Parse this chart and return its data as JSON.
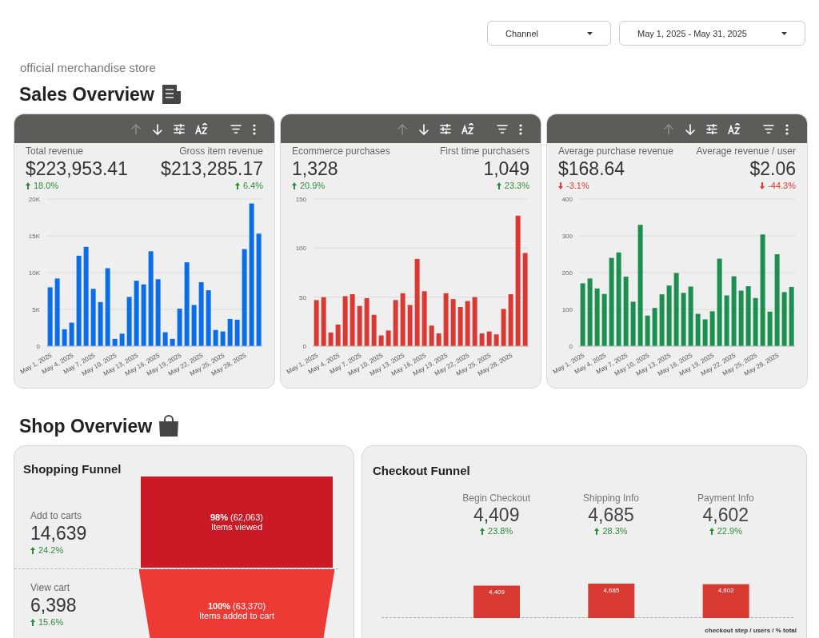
{
  "chart_data": [
    {
      "type": "other",
      "title": "Sales Overview",
      "annotations": [
        "official merchandise store",
        "Channel",
        "May 1, 2025 - May 31, 2025"
      ]
    },
    {
      "type": "bar",
      "categories": [
        "May 1, 2025",
        null,
        null,
        "May 4, 2025",
        null,
        null,
        "May 7, 2025",
        null,
        null,
        "May 10, 2025",
        null,
        null,
        "May 13, 2025",
        null,
        null,
        "May 16, 2025",
        null,
        null,
        "May 19, 2025",
        null,
        null,
        "May 22, 2025",
        null,
        null,
        "May 25, 2025",
        null,
        null,
        "May 28, 2025",
        null,
        null
      ],
      "values": [
        8000,
        9200,
        2300,
        3200,
        12300,
        13500,
        7800,
        6000,
        10600,
        1000,
        1700,
        6700,
        8900,
        8400,
        12900,
        9100,
        1900,
        1000,
        5100,
        11400,
        5600,
        8700,
        7600,
        2200,
        2000,
        3700,
        3600,
        13200,
        19400,
        15300
      ],
      "color": "#0b6de8",
      "ylim": [
        0,
        20000
      ],
      "yticks": [
        0,
        {
          "value": 5000,
          "label": "5K"
        },
        {
          "value": 10000,
          "label": "10K"
        },
        {
          "value": 15000,
          "label": "15K"
        },
        {
          "value": 20000,
          "label": "20K"
        }
      ],
      "grid": "y",
      "annotations": [
        "Total revenue",
        "$223,953.41",
        "18.0%",
        "Gross item revenue",
        "$213,285.17",
        "6.4%"
      ]
    },
    {
      "type": "bar",
      "categories": [
        "May 1, 2025",
        null,
        null,
        "May 4, 2025",
        null,
        null,
        "May 7, 2025",
        null,
        null,
        "May 10, 2025",
        null,
        null,
        "May 13, 2025",
        null,
        null,
        "May 16, 2025",
        null,
        null,
        "May 19, 2025",
        null,
        null,
        "May 22, 2025",
        null,
        null,
        "May 25, 2025",
        null,
        null,
        "May 28, 2025",
        null,
        null
      ],
      "values": [
        47,
        50,
        14,
        22,
        51,
        53,
        41,
        49,
        32,
        11,
        16,
        47,
        54,
        42,
        89,
        56,
        21,
        13,
        54,
        48,
        40,
        46,
        50,
        13,
        15,
        12,
        38,
        53,
        133,
        95
      ],
      "color": "#d93932",
      "ylim": [
        0,
        150
      ],
      "yticks": [
        0,
        50,
        100,
        150
      ],
      "grid": "y",
      "annotations": [
        "Ecommerce purchases",
        "1,328",
        "20.9%",
        "First time purchasers",
        "1,049",
        "23.3%"
      ]
    },
    {
      "type": "bar",
      "categories": [
        "May 1, 2025",
        null,
        null,
        "May 4, 2025",
        null,
        null,
        "May 7, 2025",
        null,
        null,
        "May 10, 2025",
        null,
        null,
        "May 13, 2025",
        null,
        null,
        "May 16, 2025",
        null,
        null,
        "May 19, 2025",
        null,
        null,
        "May 22, 2025",
        null,
        null,
        "May 25, 2025",
        null,
        null,
        "May 28, 2025",
        null,
        null
      ],
      "values": [
        171,
        184,
        157,
        142,
        240,
        255,
        189,
        121,
        330,
        83,
        104,
        141,
        165,
        199,
        145,
        162,
        88,
        73,
        95,
        238,
        138,
        190,
        151,
        163,
        131,
        304,
        94,
        250,
        147,
        161
      ],
      "color": "#1b8f4f",
      "ylim": [
        0,
        400
      ],
      "yticks": [
        0,
        100,
        200,
        300,
        400
      ],
      "grid": "y",
      "annotations": [
        "Average purchase revenue",
        "$168.64",
        "-3.1%",
        "Average revenue / user",
        "$2.06",
        "-44.3%"
      ]
    },
    {
      "type": "other",
      "title": "Shop Overview"
    },
    {
      "type": "other",
      "title": "Shopping Funnel",
      "categories": [
        "Items viewed",
        "Items added to cart"
      ],
      "values": [
        62063,
        63370
      ],
      "value_labels": [
        "98% (62,063)",
        "100% (63,370)"
      ],
      "colors": [
        "#c91a25",
        "#ee3a35"
      ],
      "annotations": [
        "Add to carts",
        "14,639",
        "24.2%",
        "View cart",
        "6,398",
        "15.6%"
      ]
    },
    {
      "type": "bar",
      "title": "Checkout Funnel",
      "categories": [
        "Begin Checkout",
        "Shipping Info",
        "Payment Info"
      ],
      "values": [
        4409,
        4685,
        4602
      ],
      "color": "#d83a32",
      "value_labels": [
        "4,409",
        "4,685",
        "4,602"
      ],
      "annotations": [
        "23.8%",
        "28.3%",
        "22.9%",
        "checkout step / users / % total"
      ]
    }
  ]
}
